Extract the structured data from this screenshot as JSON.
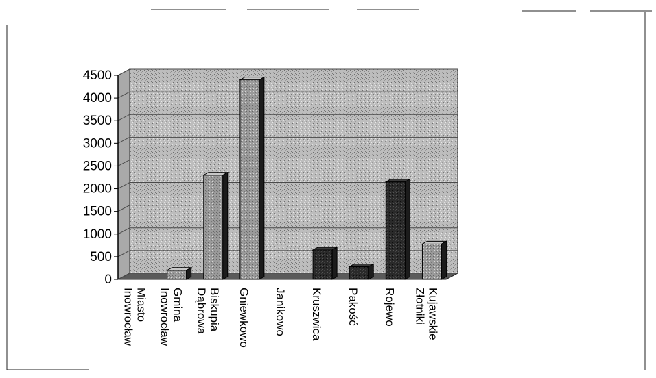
{
  "chart_data": {
    "type": "bar",
    "title": "",
    "xlabel": "",
    "ylabel": "",
    "ylim": [
      0,
      4500
    ],
    "yticks": [
      0,
      500,
      1000,
      1500,
      2000,
      2500,
      3000,
      3500,
      4000,
      4500
    ],
    "grid": true,
    "legend": "none",
    "categories": [
      "Inowrocław Miasto",
      "Inowrocław Gmina",
      "Dąbrowa Biskupia",
      "Gniewkowo",
      "Janikowo",
      "Kruszwica",
      "Pakość",
      "Rojewo",
      "Złotniki Kujawskie"
    ],
    "category_lines": [
      [
        "Inowrocław",
        "Miasto"
      ],
      [
        "Inowrocław",
        "Gmina"
      ],
      [
        "Dąbrowa",
        "Biskupia"
      ],
      [
        "Gniewkowo"
      ],
      [
        "Janikowo"
      ],
      [
        "Kruszwica"
      ],
      [
        "Pakość"
      ],
      [
        "Rojewo"
      ],
      [
        "Złotniki",
        "Kujawskie"
      ]
    ],
    "values": [
      0,
      200,
      2300,
      4400,
      0,
      650,
      280,
      2150,
      780
    ],
    "colors": {
      "plot_wall": "#b8b8b8",
      "floor": "#5a5a5a",
      "bar_dark": "#1c1c1c",
      "bar_light": "#8c8c8c",
      "grid": "#4a4a4a"
    }
  }
}
